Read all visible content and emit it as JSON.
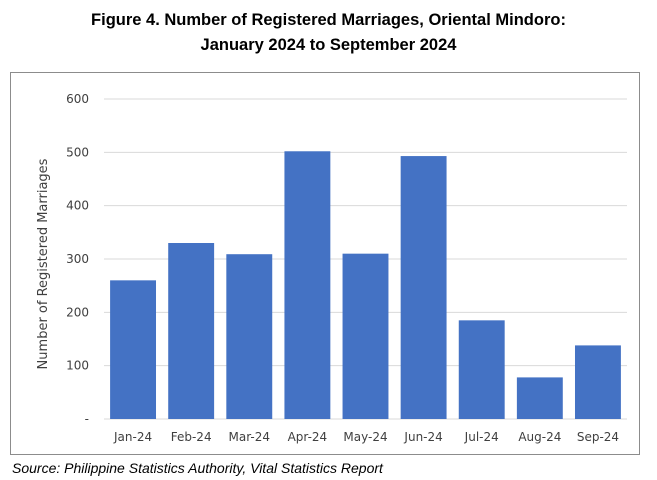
{
  "figure": {
    "title_line1": "Figure 4. Number of Registered Marriages, Oriental Mindoro:",
    "title_line2": "January 2024 to September 2024",
    "source": "Source: Philippine Statistics Authority, Vital Statistics Report"
  },
  "chart_data": {
    "type": "bar",
    "title": "",
    "xlabel": "",
    "ylabel": "Number of Registered Marriages",
    "categories": [
      "Jan-24",
      "Feb-24",
      "Mar-24",
      "Apr-24",
      "May-24",
      "Jun-24",
      "Jul-24",
      "Aug-24",
      "Sep-24"
    ],
    "values": [
      260,
      330,
      309,
      502,
      310,
      493,
      185,
      78,
      138
    ],
    "ylim": [
      0,
      600
    ],
    "yticks": [
      0,
      100,
      200,
      300,
      400,
      500,
      600
    ],
    "ytick_labels": [
      "-",
      "100",
      "200",
      "300",
      "400",
      "500",
      "600"
    ],
    "grid": true,
    "legend": "none",
    "bar_color": "#4472C4",
    "grid_color": "#d9d9d9"
  }
}
